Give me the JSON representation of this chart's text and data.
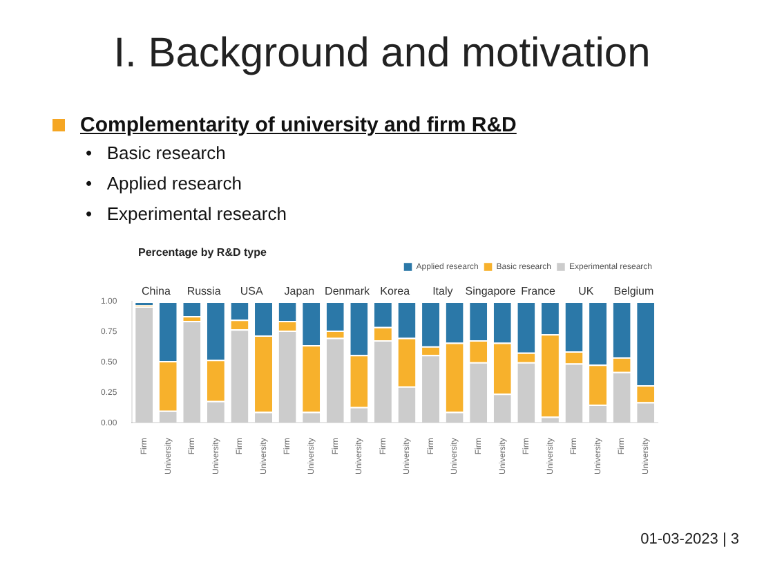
{
  "chart_data": {
    "type": "bar",
    "title": "I. Background and motivation",
    "subtitle": "Complementarity of university and firm R&D",
    "annotations": [
      "•   Basic research",
      "•   Applied research",
      "•   Experimental research",
      "Percentage by R&D type",
      "01-03-2023 | 3",
      {
        "text": "China"
      },
      {
        "text": "Russia"
      },
      {
        "text": "USA"
      },
      {
        "text": "Japan"
      },
      {
        "text": "Denmark"
      },
      {
        "text": "Korea"
      },
      {
        "text": "Italy"
      },
      {
        "text": "Singapore"
      },
      {
        "text": "France"
      },
      {
        "text": "UK"
      },
      {
        "text": "Belgium"
      }
    ],
    "categories": [
      "Firm",
      "University",
      "Firm",
      "University",
      "Firm",
      "University",
      "Firm",
      "University",
      "Firm",
      "University",
      "Firm",
      "University",
      "Firm",
      "University",
      "Firm",
      "University",
      "Firm",
      "University",
      "Firm",
      "University",
      "Firm",
      "University"
    ],
    "stacked": true,
    "series": [
      {
        "name": "Experimental research",
        "color": "#cccccc",
        "values": [
          0.96,
          0.1,
          0.84,
          0.18,
          0.77,
          0.09,
          0.76,
          0.09,
          0.7,
          0.13,
          0.68,
          0.3,
          0.56,
          0.09,
          0.5,
          0.24,
          0.5,
          0.05,
          0.49,
          0.15,
          0.42,
          0.17
        ]
      },
      {
        "name": "Basic research",
        "color": "#f7b12c",
        "values": [
          0.01,
          0.41,
          0.04,
          0.34,
          0.08,
          0.63,
          0.08,
          0.55,
          0.06,
          0.43,
          0.11,
          0.4,
          0.07,
          0.57,
          0.18,
          0.42,
          0.08,
          0.68,
          0.1,
          0.33,
          0.12,
          0.14
        ]
      },
      {
        "name": "Applied research",
        "color": "#2b78a8",
        "values": [
          0.03,
          0.49,
          0.12,
          0.48,
          0.15,
          0.28,
          0.16,
          0.36,
          0.24,
          0.44,
          0.21,
          0.3,
          0.37,
          0.34,
          0.32,
          0.34,
          0.42,
          0.27,
          0.41,
          0.52,
          0.46,
          0.69
        ]
      }
    ],
    "ylim": [
      0,
      1
    ],
    "yticks": [
      {
        "value": 0,
        "label": "0.00"
      },
      {
        "value": 0.25,
        "label": "0.25"
      },
      {
        "value": 0.5,
        "label": "0.50"
      },
      {
        "value": 0.75,
        "label": "0.75"
      },
      {
        "value": 1,
        "label": "1.00"
      }
    ],
    "legend": "top right"
  }
}
